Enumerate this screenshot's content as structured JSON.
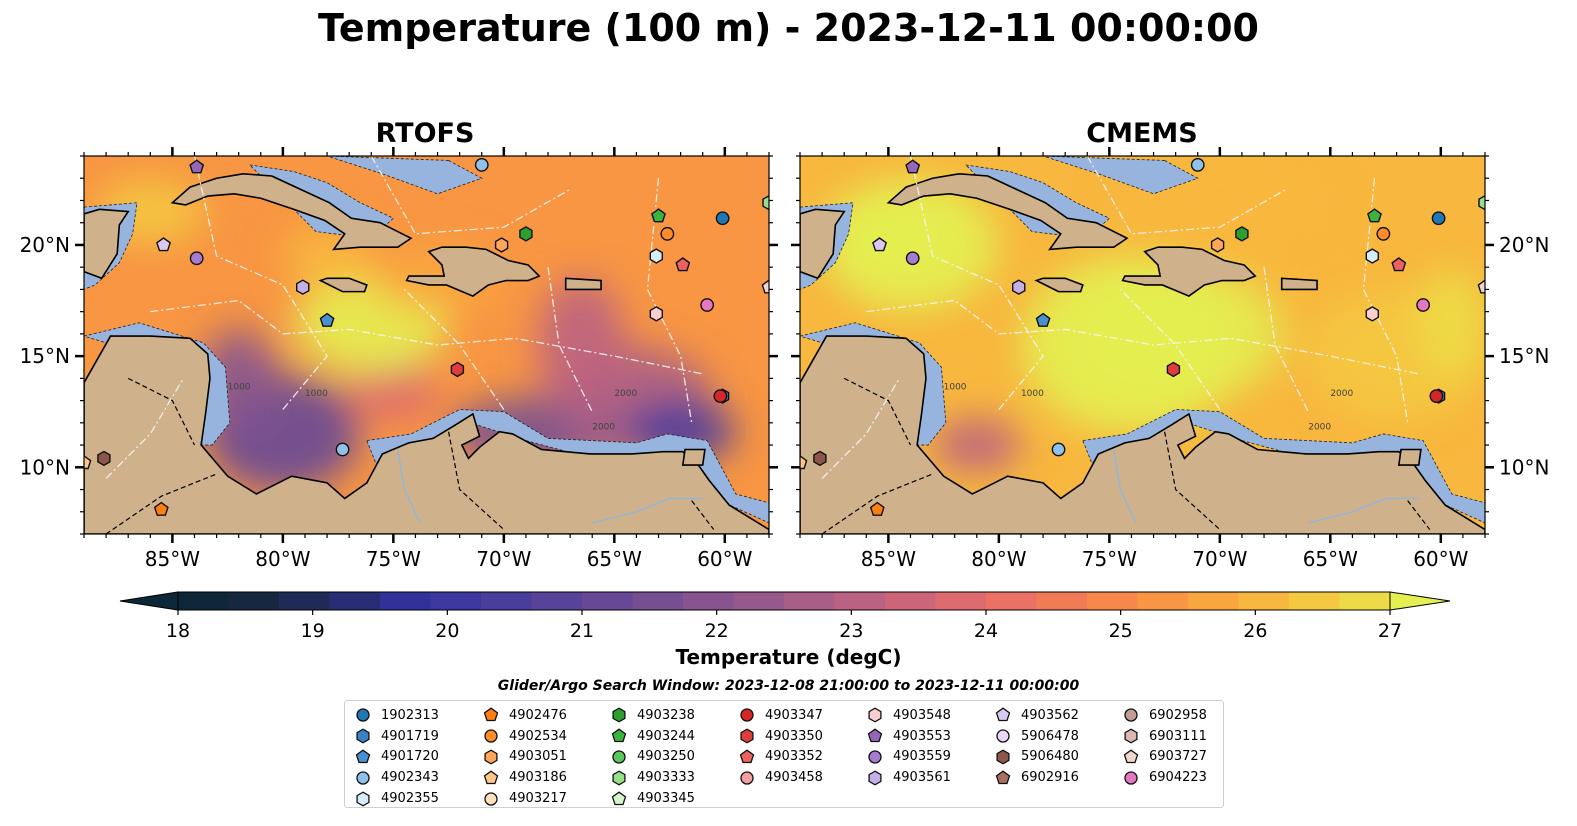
{
  "title": "Temperature (100 m) - 2023-12-11 00:00:00",
  "panels": [
    {
      "title": "RTOFS",
      "field": "rtofs"
    },
    {
      "title": "CMEMS",
      "field": "cmems"
    }
  ],
  "map": {
    "lon_range": [
      -89,
      -58
    ],
    "lat_range": [
      7,
      24
    ],
    "lon_ticks": [
      {
        "value": -85,
        "label": "85°W"
      },
      {
        "value": -80,
        "label": "80°W"
      },
      {
        "value": -75,
        "label": "75°W"
      },
      {
        "value": -70,
        "label": "70°W"
      },
      {
        "value": -65,
        "label": "65°W"
      },
      {
        "value": -60,
        "label": "60°W"
      }
    ],
    "lat_ticks": [
      {
        "value": 10,
        "label": "10°N"
      },
      {
        "value": 15,
        "label": "15°N"
      },
      {
        "value": 20,
        "label": "20°N"
      }
    ],
    "contour_labels": [
      "1000",
      "1000",
      "2000",
      "2000"
    ],
    "land_color": "#cfb28b",
    "shelf_color": "#96b4de"
  },
  "colorbar": {
    "label": "Temperature (degC)",
    "min": 18,
    "max": 27,
    "ticks": [
      "18",
      "19",
      "20",
      "21",
      "22",
      "23",
      "24",
      "25",
      "26",
      "27"
    ],
    "colors": [
      "#0e2738",
      "#17273f",
      "#1f2a56",
      "#272c74",
      "#32319a",
      "#3d389f",
      "#4a3e9c",
      "#57439a",
      "#664896",
      "#764f92",
      "#87548f",
      "#97598c",
      "#a95e87",
      "#bb6282",
      "#cd657a",
      "#dd6a6f",
      "#ea7163",
      "#f27b56",
      "#f6884b",
      "#f89643",
      "#f9a63f",
      "#f8b73e",
      "#f4c840",
      "#ecdb46",
      "#e4ef51"
    ]
  },
  "legend": {
    "title": "Glider/Argo Search Window: 2023-12-08 21:00:00 to 2023-12-11 00:00:00",
    "columns": [
      [
        {
          "label": "1902313",
          "shape": "circle",
          "color": "#1f77b4"
        },
        {
          "label": "4901719",
          "shape": "hexagon",
          "color": "#3b82c4"
        },
        {
          "label": "4901720",
          "shape": "pentagon",
          "color": "#4a90d0"
        },
        {
          "label": "4902343",
          "shape": "circle",
          "color": "#8fc1ea"
        },
        {
          "label": "4902355",
          "shape": "hexagon",
          "color": "#d6ecfb"
        }
      ],
      [
        {
          "label": "4902476",
          "shape": "pentagon",
          "color": "#ff7f0e"
        },
        {
          "label": "4902534",
          "shape": "circle",
          "color": "#ff8c2a"
        },
        {
          "label": "4903051",
          "shape": "hexagon",
          "color": "#ffa65a"
        },
        {
          "label": "4903186",
          "shape": "pentagon",
          "color": "#ffc489"
        },
        {
          "label": "4903217",
          "shape": "circle",
          "color": "#ffe0bd"
        }
      ],
      [
        {
          "label": "4903238",
          "shape": "hexagon",
          "color": "#2ca02c"
        },
        {
          "label": "4903244",
          "shape": "pentagon",
          "color": "#3cb43c"
        },
        {
          "label": "4903250",
          "shape": "circle",
          "color": "#5cc75c"
        },
        {
          "label": "4903333",
          "shape": "hexagon",
          "color": "#98df8a"
        },
        {
          "label": "4903345",
          "shape": "pentagon",
          "color": "#d5f5cc"
        }
      ],
      [
        {
          "label": "4903347",
          "shape": "circle",
          "color": "#d62728"
        },
        {
          "label": "4903350",
          "shape": "hexagon",
          "color": "#e03c3c"
        },
        {
          "label": "4903352",
          "shape": "pentagon",
          "color": "#ea6262"
        },
        {
          "label": "4903458",
          "shape": "circle",
          "color": "#f4a0a0"
        }
      ],
      [
        {
          "label": "4903548",
          "shape": "hexagon",
          "color": "#f9cfcf"
        },
        {
          "label": "4903553",
          "shape": "pentagon",
          "color": "#9467bd"
        },
        {
          "label": "4903559",
          "shape": "circle",
          "color": "#a57cd0"
        },
        {
          "label": "4903561",
          "shape": "hexagon",
          "color": "#c5b0e6"
        }
      ],
      [
        {
          "label": "4903562",
          "shape": "pentagon",
          "color": "#d8c9f2"
        },
        {
          "label": "5906478",
          "shape": "circle",
          "color": "#ead8fb"
        },
        {
          "label": "5906480",
          "shape": "hexagon",
          "color": "#8c564b"
        },
        {
          "label": "6902916",
          "shape": "pentagon",
          "color": "#a8705f"
        }
      ],
      [
        {
          "label": "6902958",
          "shape": "circle",
          "color": "#c49c94"
        },
        {
          "label": "6903111",
          "shape": "hexagon",
          "color": "#dcb7ad"
        },
        {
          "label": "6903727",
          "shape": "pentagon",
          "color": "#f0d6cf"
        },
        {
          "label": "6904223",
          "shape": "circle",
          "color": "#e377c2"
        }
      ]
    ]
  },
  "floats": [
    {
      "id": "1902313",
      "lon": -60.1,
      "lat": 21.2
    },
    {
      "id": "4901719",
      "lon": -60.1,
      "lat": 13.2
    },
    {
      "id": "4901720",
      "lon": -78.0,
      "lat": 16.6
    },
    {
      "id": "4902343",
      "lon": -71.0,
      "lat": 23.6
    },
    {
      "id": "4902355",
      "lon": -63.1,
      "lat": 19.5
    },
    {
      "id": "4902476",
      "lon": -85.5,
      "lat": 8.1
    },
    {
      "id": "4902534",
      "lon": -62.6,
      "lat": 20.5
    },
    {
      "id": "4903051",
      "lon": -70.1,
      "lat": 20.0
    },
    {
      "id": "4903186",
      "lon": -89.0,
      "lat": 10.2
    },
    {
      "id": "4903238",
      "lon": -69.0,
      "lat": 20.5
    },
    {
      "id": "4903244",
      "lon": -63.0,
      "lat": 21.3
    },
    {
      "id": "4903347",
      "lon": -60.2,
      "lat": 13.2
    },
    {
      "id": "4903350",
      "lon": -72.1,
      "lat": 14.4
    },
    {
      "id": "4903352",
      "lon": -61.9,
      "lat": 19.1
    },
    {
      "id": "4903548",
      "lon": -63.1,
      "lat": 16.9
    },
    {
      "id": "4903553",
      "lon": -83.9,
      "lat": 23.5
    },
    {
      "id": "4903559",
      "lon": -83.9,
      "lat": 19.4
    },
    {
      "id": "4903562",
      "lon": -85.4,
      "lat": 20.0
    },
    {
      "id": "5906480",
      "lon": -88.1,
      "lat": 10.4
    },
    {
      "id": "6903727",
      "lon": -58.0,
      "lat": 18.1
    },
    {
      "id": "6904223",
      "lon": -60.8,
      "lat": 17.3
    },
    {
      "id": "4903561",
      "lon": -79.1,
      "lat": 18.1
    },
    {
      "id": "4903333",
      "lon": -58.0,
      "lat": 21.9
    },
    {
      "id": "4902343b",
      "lon": -77.3,
      "lat": 10.8
    }
  ]
}
